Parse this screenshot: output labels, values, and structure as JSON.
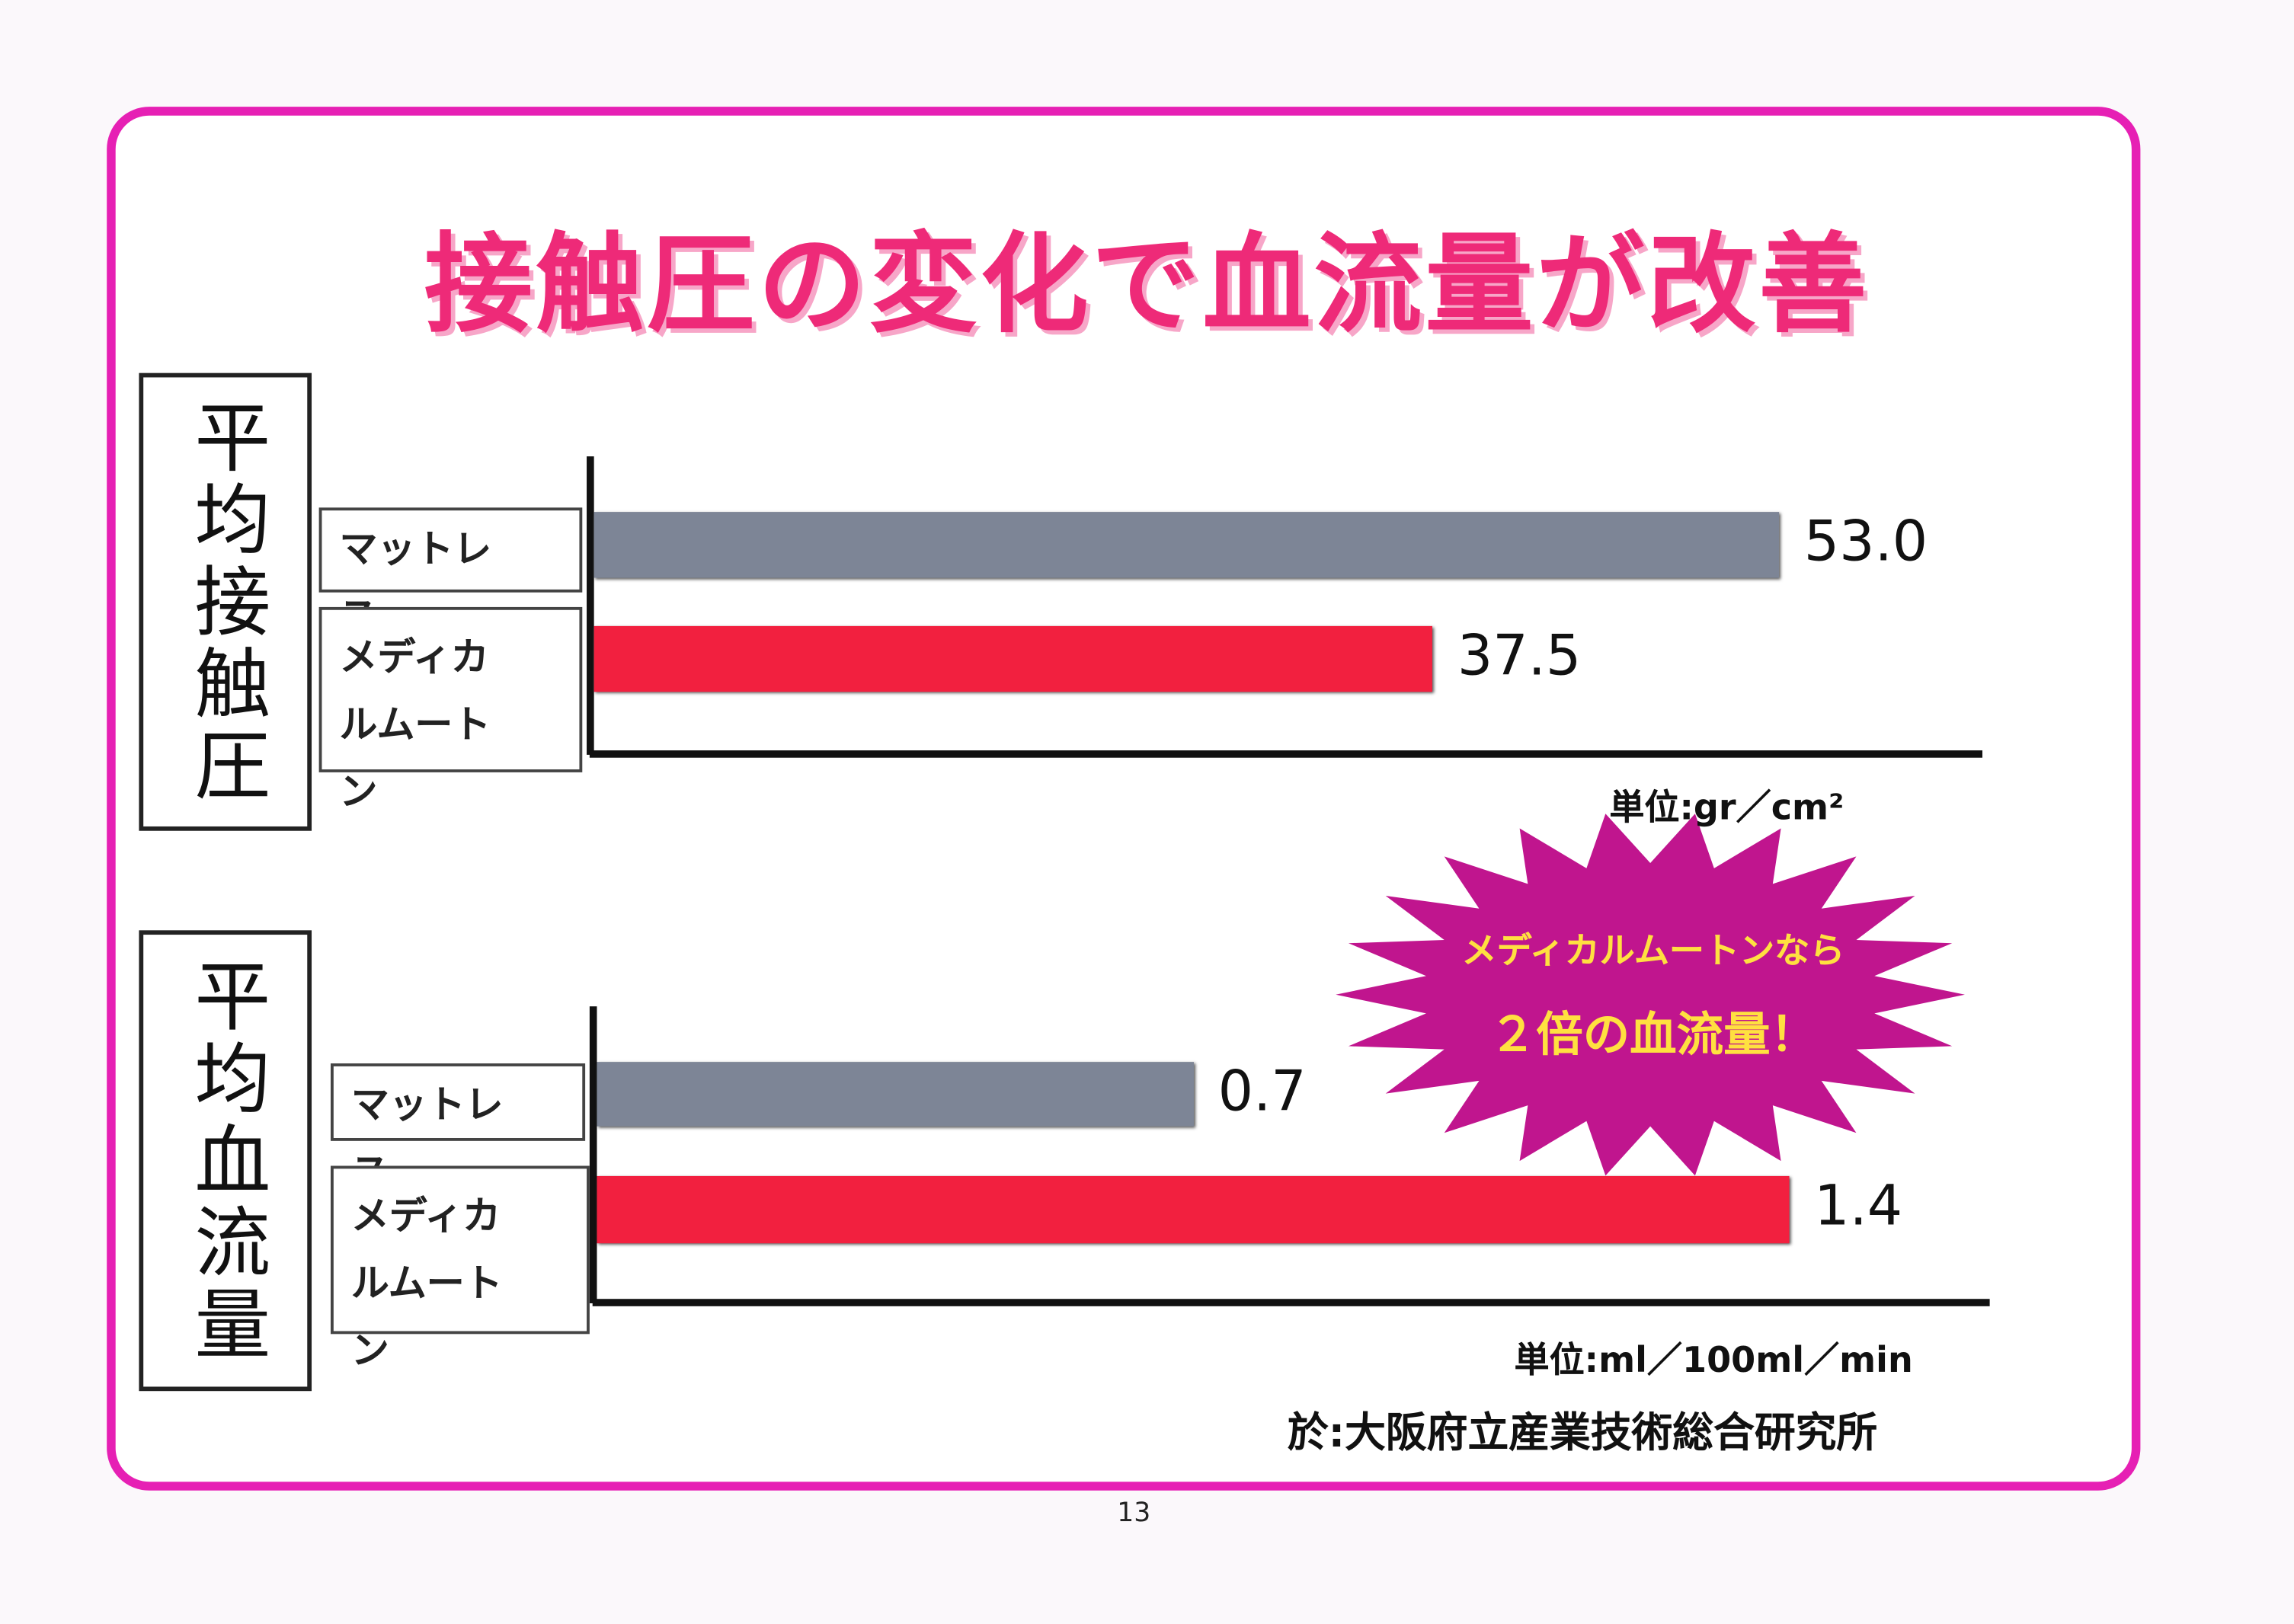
{
  "title": "接触圧の変化で血流量が改善",
  "chart_data": [
    {
      "type": "bar",
      "orientation": "horizontal",
      "side_label": "平均接触圧",
      "categories": [
        "マットレス",
        "メディカルムートン"
      ],
      "values": [
        53.0,
        37.5
      ],
      "value_labels": [
        "53.0",
        "37.5"
      ],
      "colors": [
        "#7d8596",
        "#f2203f"
      ],
      "unit": "単位:gr／cm²"
    },
    {
      "type": "bar",
      "orientation": "horizontal",
      "side_label": "平均血流量",
      "categories": [
        "マットレス",
        "メディカルムートン"
      ],
      "values": [
        0.7,
        1.4
      ],
      "colors": [
        "#7d8596",
        "#f2203f"
      ],
      "unit": "単位:ml／100ml／min"
    }
  ],
  "callout": {
    "line1": "メディカルムートンなら",
    "line2": "２倍の血流量！"
  },
  "source": "於:大阪府立産業技術総合研究所",
  "page_number": "13"
}
